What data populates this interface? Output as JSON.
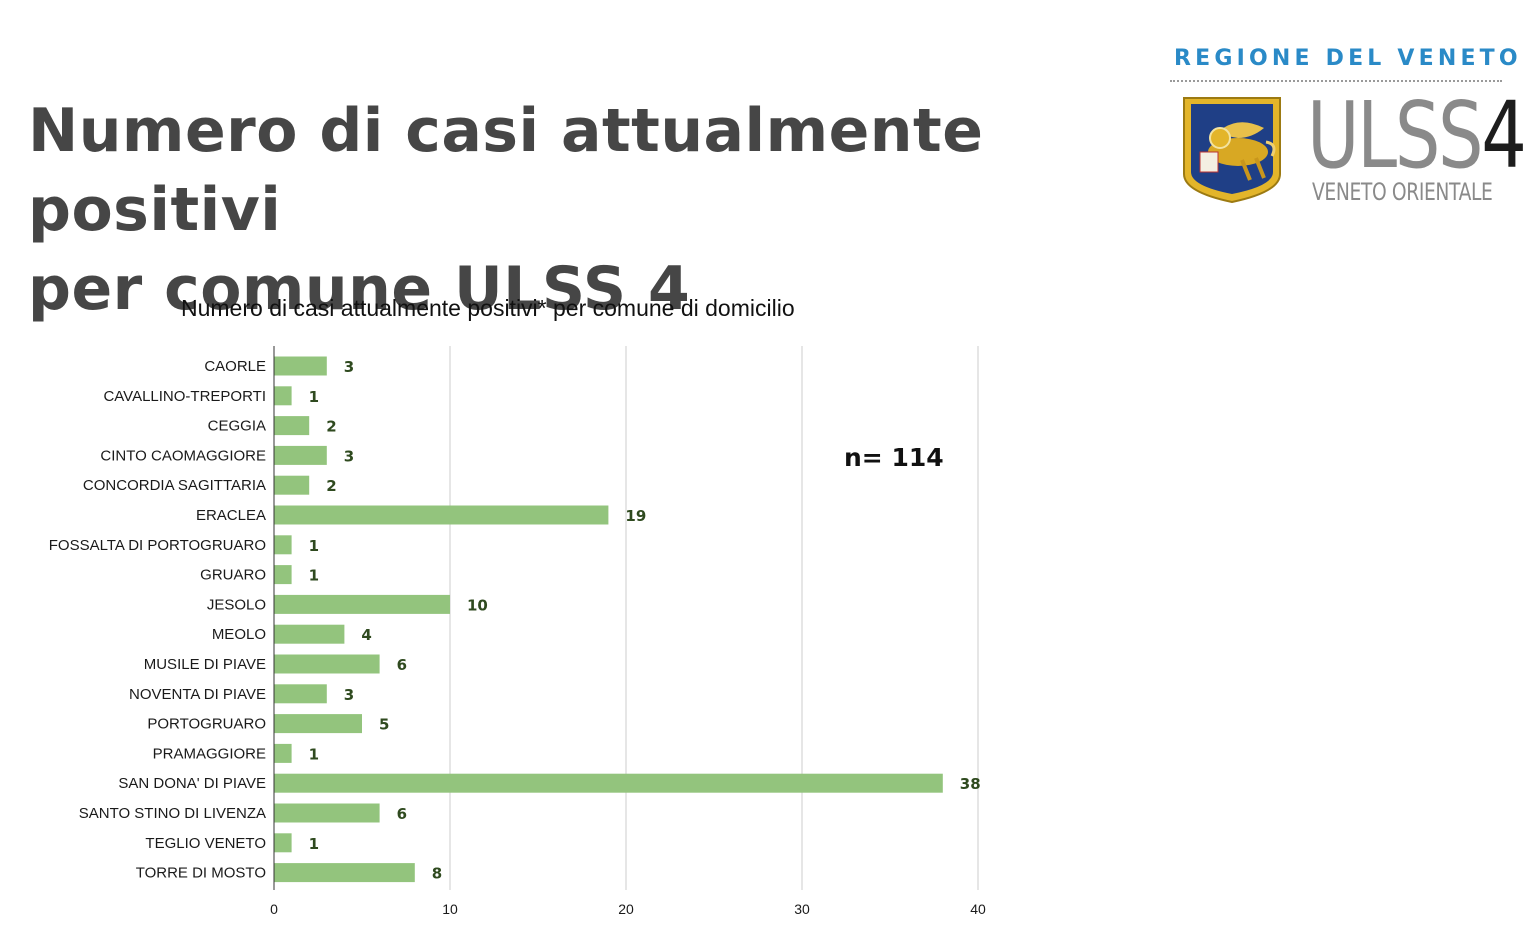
{
  "slide": {
    "title_line1": "Numero di casi attualmente positivi",
    "title_line2": "per comune ULSS 4"
  },
  "logo": {
    "region": "REGIONE DEL VENETO",
    "name_letters": "ULSS",
    "name_number": "4",
    "subtitle": "VENETO ORIENTALE",
    "seal_icon": "lion-of-saint-mark-icon"
  },
  "chart_data": {
    "type": "bar",
    "orientation": "horizontal",
    "title": "Numero di casi attualmente positivi* per comune di domicilio",
    "xlabel": "",
    "ylabel": "",
    "categories": [
      "CAORLE",
      "CAVALLINO-TREPORTI",
      "CEGGIA",
      "CINTO CAOMAGGIORE",
      "CONCORDIA SAGITTARIA",
      "ERACLEA",
      "FOSSALTA DI PORTOGRUARO",
      "GRUARO",
      "JESOLO",
      "MEOLO",
      "MUSILE DI PIAVE",
      "NOVENTA DI PIAVE",
      "PORTOGRUARO",
      "PRAMAGGIORE",
      "SAN DONA' DI PIAVE",
      "SANTO STINO DI LIVENZA",
      "TEGLIO VENETO",
      "TORRE DI MOSTO"
    ],
    "values": [
      3,
      1,
      2,
      3,
      2,
      19,
      1,
      1,
      10,
      4,
      6,
      3,
      5,
      1,
      38,
      6,
      1,
      8
    ],
    "xlim": [
      0,
      40
    ],
    "xticks": [
      0,
      10,
      20,
      30,
      40
    ],
    "grid": "vertical",
    "legend": "none",
    "data_labels": true,
    "annotation": "n= 114",
    "colors": {
      "bar": "#93c47d",
      "grid": "#cccccc",
      "value_label": "#2f4a1f"
    }
  }
}
